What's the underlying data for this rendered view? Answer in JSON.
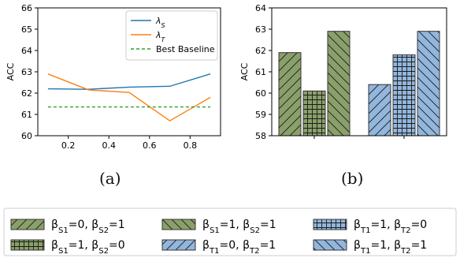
{
  "chart_data": [
    {
      "type": "line",
      "panel_label": "(a)",
      "ylabel": "ACC",
      "xlim": [
        0.05,
        0.95
      ],
      "ylim": [
        60,
        66
      ],
      "x_ticks": [
        "0.2",
        "0.4",
        "0.6",
        "0.8"
      ],
      "y_ticks": [
        "60",
        "61",
        "62",
        "63",
        "64",
        "65",
        "66"
      ],
      "legend": {
        "position": "upper-right"
      },
      "series": [
        {
          "name": "λS",
          "name_base": "λ",
          "name_sub": "S",
          "color": "#1f77b4",
          "style": "solid",
          "x": [
            0.1,
            0.3,
            0.5,
            0.7,
            0.9
          ],
          "y": [
            62.2,
            62.18,
            62.28,
            62.32,
            62.9
          ]
        },
        {
          "name": "λT",
          "name_base": "λ",
          "name_sub": "T",
          "color": "#ff7f0e",
          "style": "solid",
          "x": [
            0.1,
            0.3,
            0.5,
            0.7,
            0.9
          ],
          "y": [
            62.9,
            62.15,
            62.03,
            60.7,
            61.8
          ]
        },
        {
          "name": "Best Baseline",
          "color": "#2ca02c",
          "style": "dashed",
          "x": [
            0.1,
            0.9
          ],
          "y": [
            61.35,
            61.35
          ]
        }
      ]
    },
    {
      "type": "bar",
      "panel_label": "(b)",
      "ylabel": "ACC",
      "ylim": [
        58,
        64
      ],
      "y_ticks": [
        "58",
        "59",
        "60",
        "61",
        "62",
        "63",
        "64"
      ],
      "groups": [
        {
          "color": "#8aa06a",
          "bars": [
            {
              "legend_index": 0,
              "value": 61.9
            },
            {
              "legend_index": 3,
              "value": 60.1
            },
            {
              "legend_index": 1,
              "value": 62.9
            }
          ]
        },
        {
          "color": "#92b6dc",
          "bars": [
            {
              "legend_index": 4,
              "value": 60.4
            },
            {
              "legend_index": 2,
              "value": 61.8
            },
            {
              "legend_index": 5,
              "value": 62.9
            }
          ]
        }
      ]
    }
  ],
  "legend_b": [
    {
      "label": "βS1=0, βS2=1",
      "b1": "S1",
      "v1": "0",
      "b2": "S2",
      "v2": "1",
      "hatch": "fslash",
      "color": "#8aa06a"
    },
    {
      "label": "βS1=1, βS2=1",
      "b1": "S1",
      "v1": "1",
      "b2": "S2",
      "v2": "1",
      "hatch": "bslash",
      "color": "#8aa06a"
    },
    {
      "label": "βT1=1, βT2=0",
      "b1": "T1",
      "v1": "1",
      "b2": "T2",
      "v2": "0",
      "hatch": "grid",
      "color": "#92b6dc"
    },
    {
      "label": "βS1=1, βS2=0",
      "b1": "S1",
      "v1": "1",
      "b2": "S2",
      "v2": "0",
      "hatch": "grid",
      "color": "#8aa06a"
    },
    {
      "label": "βT1=0, βT2=1",
      "b1": "T1",
      "v1": "0",
      "b2": "T2",
      "v2": "1",
      "hatch": "fslash",
      "color": "#92b6dc"
    },
    {
      "label": "βT1=1, βT2=1",
      "b1": "T1",
      "v1": "1",
      "b2": "T2",
      "v2": "1",
      "hatch": "bslash",
      "color": "#92b6dc"
    }
  ]
}
